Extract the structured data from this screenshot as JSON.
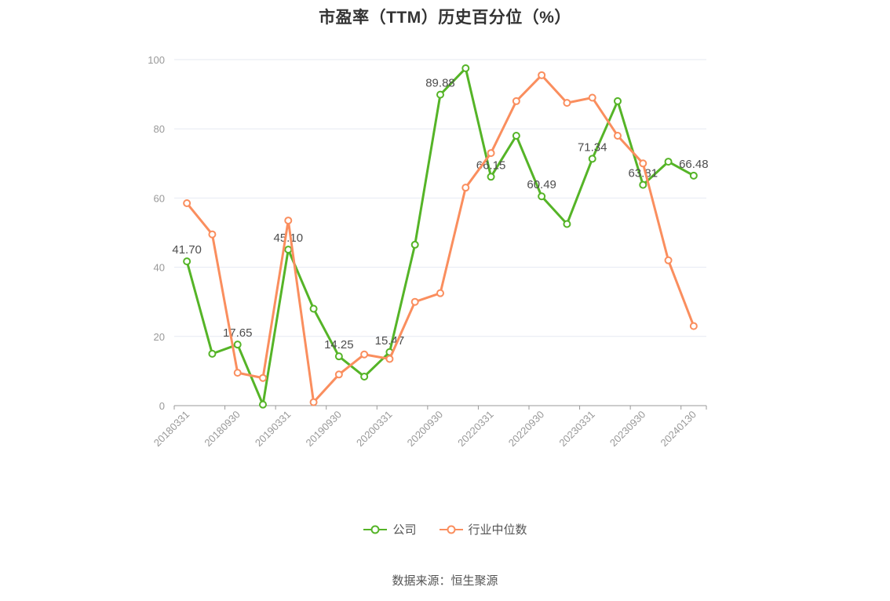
{
  "footer": {
    "source": "数据来源：恒生聚源"
  },
  "chart_data": {
    "type": "line",
    "title": "市盈率（TTM）历史百分位（%）",
    "ylim": [
      0,
      100
    ],
    "yticks": [
      0,
      20,
      40,
      60,
      80,
      100
    ],
    "x_tick_labels": [
      "20180331",
      "20180930",
      "20190331",
      "20190930",
      "20200331",
      "20200930",
      "20220331",
      "20220930",
      "20230331",
      "20230930",
      "20240130"
    ],
    "x_label_every": 2,
    "grid": true,
    "legend_position": "bottom",
    "series": [
      {
        "name": "公司",
        "color": "#55b427",
        "values": [
          41.7,
          15.0,
          17.65,
          0.3,
          45.1,
          28.0,
          14.25,
          8.4,
          15.47,
          46.5,
          89.88,
          97.5,
          66.15,
          78.0,
          60.49,
          52.5,
          71.34,
          88.0,
          63.81,
          70.5,
          66.48
        ],
        "point_labels": {
          "0": "41.70",
          "2": "17.65",
          "4": "45.10",
          "6": "14.25",
          "8": "15.47",
          "10": "89.88",
          "12": "66.15",
          "14": "60.49",
          "16": "71.34",
          "18": "63.81",
          "20": "66.48"
        }
      },
      {
        "name": "行业中位数",
        "color": "#fa8e5e",
        "values": [
          58.5,
          49.5,
          9.5,
          8.0,
          53.5,
          1.0,
          9.0,
          14.8,
          13.5,
          30.0,
          32.5,
          63.0,
          73.0,
          88.0,
          95.5,
          87.5,
          89.0,
          78.0,
          70.0,
          42.0,
          23.0
        ],
        "point_labels": {}
      }
    ],
    "colors": {
      "axis_label": "#999999",
      "axis_line": "#999999",
      "grid_line": "#e6e9f2",
      "point_label": "#4d4d4d",
      "title": "#333333",
      "marker_fill": "#ffffff"
    }
  }
}
